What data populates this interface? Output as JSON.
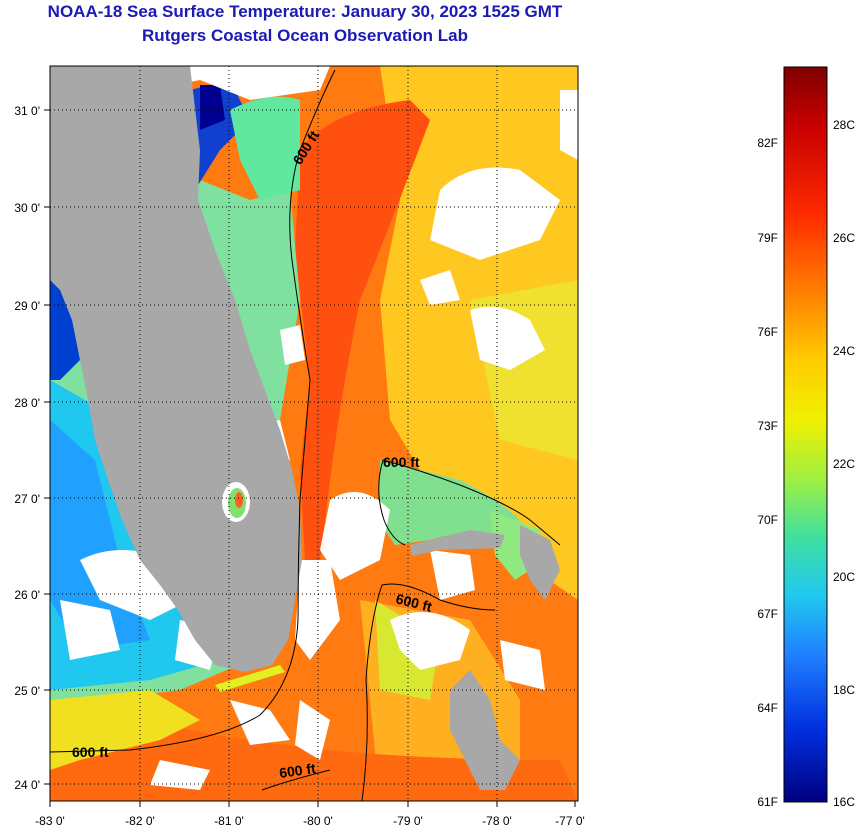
{
  "title": "NOAA-18 Sea Surface Temperature:  January 30, 2023 1525 GMT",
  "subtitle": "Rutgers Coastal Ocean Observation Lab",
  "map": {
    "lon_labels": [
      "-83 0'",
      "-82 0'",
      "-81 0'",
      "-80 0'",
      "-79 0'",
      "-78 0'",
      "-77 0'"
    ],
    "lat_labels": [
      "31 0'",
      "30 0'",
      "29 0'",
      "28 0'",
      "27 0'",
      "26 0'",
      "25 0'",
      "24 0'"
    ],
    "isobath_labels": [
      "600 ft",
      "600 ft",
      "600 ft",
      "600 ft",
      "600 ft"
    ]
  },
  "colorbar": {
    "fahrenheit_labels": [
      "82F",
      "79F",
      "76F",
      "73F",
      "70F",
      "67F",
      "64F",
      "61F"
    ],
    "celsius_labels": [
      "28C",
      "26C",
      "24C",
      "22C",
      "20C",
      "18C",
      "16C"
    ],
    "colors": [
      "#7f0000",
      "#d40000",
      "#ff4000",
      "#ff8c00",
      "#ffd400",
      "#e0f020",
      "#80f080",
      "#20e0d0",
      "#20a0ff",
      "#0050ff",
      "#0000d0",
      "#000080"
    ]
  },
  "colors": {
    "land": "#a8a8a8",
    "cloud": "#ffffff",
    "title": "#1a1ab4"
  }
}
